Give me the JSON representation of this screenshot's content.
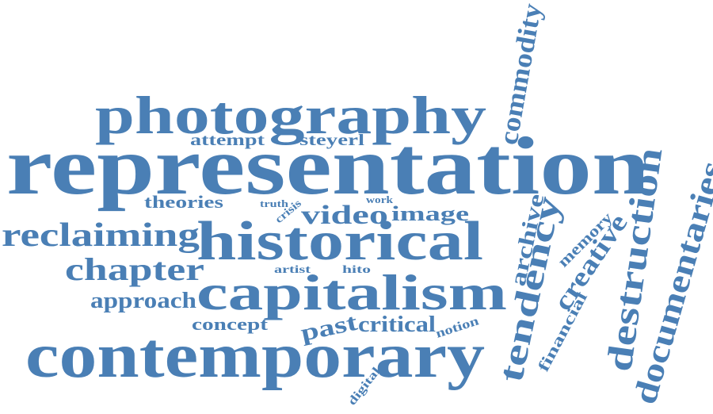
{
  "color": "#4a7fb5",
  "words": {
    "representation": "representation",
    "photography": "photography",
    "contemporary": "contemporary",
    "historical": "historical",
    "capitalism": "capitalism",
    "reclaiming": "reclaiming",
    "chapter": "chapter",
    "approach": "approach",
    "concept": "concept",
    "theories": "theories",
    "attempt": "attempt",
    "steyerl": "steyerl",
    "truth": "truth",
    "crisis": "crisis",
    "work": "work",
    "video": "video",
    "image": "image",
    "artist": "artist",
    "hito": "hito",
    "past": "past",
    "critical": "critical",
    "notion": "notion",
    "digital": "digital",
    "commodity": "commodity",
    "archive": "archive",
    "tendency": "tendency",
    "memory": "memory",
    "creative": "creative",
    "financial": "financial",
    "destruction": "destruction",
    "documentaries": "documentaries"
  }
}
